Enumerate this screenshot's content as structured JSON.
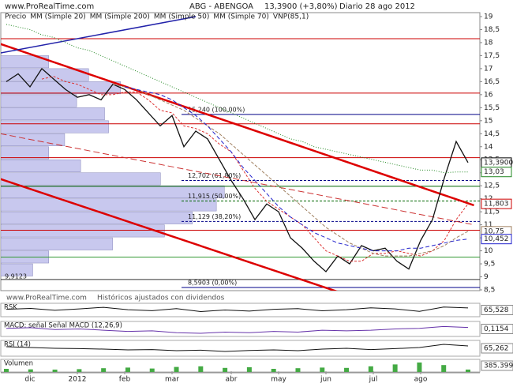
{
  "header": {
    "site": "www.ProRealTime.com",
    "symbol": "ABG - ABENGOA",
    "quote": "13,3900 (+3,80%)",
    "period": "Diario  28 ago 2012"
  },
  "footer": {
    "site": "www.ProRealTime.com",
    "note": "Históricos ajustados con dividendos"
  },
  "chart_data": [
    {
      "type": "line",
      "categories": [
        null,
        null,
        "dic",
        null,
        null,
        null,
        "2012",
        null,
        null,
        null,
        "feb",
        null,
        null,
        null,
        "mar",
        null,
        null,
        null,
        null,
        "abr",
        null,
        null,
        null,
        "may",
        null,
        null,
        null,
        "jun",
        null,
        null,
        null,
        "jul",
        null,
        null,
        null,
        "ago",
        null,
        null,
        null,
        null
      ],
      "series": [
        {
          "name": "Precio",
          "color": "#111111",
          "values": [
            16.5,
            16.8,
            16.3,
            17.0,
            16.6,
            16.2,
            15.9,
            16.0,
            15.8,
            16.4,
            16.2,
            15.8,
            15.3,
            14.8,
            15.2,
            14.0,
            14.6,
            14.3,
            13.5,
            12.7,
            12.0,
            11.2,
            11.8,
            11.5,
            10.5,
            10.1,
            9.6,
            9.2,
            9.8,
            9.5,
            10.2,
            10.0,
            10.1,
            9.6,
            9.3,
            10.4,
            11.2,
            12.8,
            14.2,
            13.39
          ]
        },
        {
          "name": "MM (Simple 20)",
          "color": "#dd3333",
          "values": [
            null,
            null,
            null,
            16.6,
            16.7,
            16.5,
            16.4,
            16.2,
            16.0,
            16.0,
            16.1,
            16.1,
            15.8,
            15.4,
            15.3,
            14.8,
            14.7,
            14.5,
            14.1,
            13.8,
            13.1,
            12.4,
            11.9,
            11.6,
            11.3,
            11.0,
            10.5,
            10.0,
            9.8,
            9.6,
            9.6,
            9.9,
            9.9,
            10.0,
            9.9,
            9.8,
            10.0,
            10.4,
            11.2,
            11.8
          ]
        },
        {
          "name": "MM (Simple 200)",
          "color": "#228822",
          "values": [
            18.7,
            18.6,
            18.5,
            18.3,
            18.2,
            18.0,
            17.8,
            17.7,
            17.5,
            17.3,
            17.1,
            16.9,
            16.7,
            16.5,
            16.3,
            16.1,
            15.9,
            15.7,
            15.5,
            15.3,
            15.1,
            14.9,
            14.7,
            14.5,
            14.3,
            14.2,
            14.0,
            13.9,
            13.8,
            13.7,
            13.6,
            13.5,
            13.4,
            13.3,
            13.2,
            13.1,
            13.1,
            13.0,
            13.03,
            13.03
          ]
        },
        {
          "name": "MM (Simple 50)",
          "color": "#a08060",
          "values": [
            null,
            null,
            null,
            null,
            null,
            null,
            null,
            null,
            null,
            16.4,
            16.3,
            16.2,
            16.0,
            15.8,
            15.6,
            15.4,
            15.1,
            14.8,
            14.5,
            14.1,
            13.7,
            13.3,
            12.9,
            12.5,
            12.1,
            11.7,
            11.3,
            10.9,
            10.6,
            10.3,
            10.1,
            9.9,
            9.8,
            9.8,
            9.8,
            9.9,
            10.0,
            10.2,
            10.5,
            10.75
          ]
        },
        {
          "name": "MM (Simple 70)",
          "color": "#2222cc",
          "values": [
            null,
            null,
            null,
            null,
            null,
            null,
            null,
            null,
            null,
            null,
            16.3,
            16.2,
            16.1,
            16.0,
            15.8,
            15.5,
            15.2,
            14.8,
            14.3,
            13.8,
            13.2,
            12.7,
            12.2,
            11.7,
            11.3,
            11.0,
            10.7,
            10.5,
            10.3,
            10.2,
            10.1,
            10.0,
            10.0,
            10.0,
            10.1,
            10.1,
            10.2,
            10.3,
            10.4,
            10.452
          ]
        }
      ],
      "profile": {
        "name": "VNP(85,1)",
        "color": "#c8c8ee",
        "bins": [
          9,
          9.5,
          10,
          10.5,
          11,
          11.5,
          12,
          12.5,
          13,
          13.5,
          14,
          14.5,
          15,
          15.5,
          16,
          16.5,
          17,
          17.5
        ],
        "values": [
          40,
          60,
          140,
          205,
          240,
          270,
          280,
          200,
          100,
          60,
          80,
          135,
          130,
          95,
          150,
          110,
          60
        ],
        "xlim": [
          0,
          600
        ],
        "low_label": "9,9123"
      },
      "ylim": [
        8.5,
        19
      ],
      "yticks": [
        {
          "value": 8.5,
          "label": "8,5"
        },
        9,
        {
          "value": 9.5,
          "label": "9,5"
        },
        10,
        {
          "value": 10.5,
          "label": "10,5"
        },
        11,
        {
          "value": 11.5,
          "label": "11,5"
        },
        12,
        {
          "value": 12.5,
          "label": "12,5"
        },
        13,
        {
          "value": 13.5,
          "label": "13,5"
        },
        14,
        {
          "value": 14.5,
          "label": "14,5"
        },
        15,
        {
          "value": 15.5,
          "label": "15,5"
        },
        16,
        {
          "value": 16.5,
          "label": "16,5"
        },
        17,
        {
          "value": 17.5,
          "label": "17,5"
        },
        18,
        {
          "value": 18.5,
          "label": "18,5"
        },
        19
      ],
      "lines": [
        {
          "value": 18.15,
          "color": "#cc0000"
        },
        {
          "value": 16.06,
          "color": "#cc0000"
        },
        {
          "value": 14.88,
          "color": "#cc0000"
        },
        {
          "value": 13.58,
          "color": "#cc0000"
        },
        {
          "value": 12.48,
          "color": "#006600"
        },
        {
          "value": 10.79,
          "color": "#cc0000"
        },
        {
          "value": 9.76,
          "color": "#339933"
        },
        {
          "value": 8.9,
          "color": "#333333"
        }
      ],
      "fib_levels": [
        {
          "value": 15.24,
          "label": "15,240 (100,00%)",
          "color": "#000088"
        },
        {
          "value": 12.702,
          "label": "12,702 (61,80%)",
          "color": "#000088"
        },
        {
          "value": 11.915,
          "label": "11,915 (50,00%)",
          "color": "#006600"
        },
        {
          "value": 11.129,
          "label": "11,129 (38,20%)",
          "color": "#000088"
        },
        {
          "value": 8.5903,
          "label": "8,5903 (0,00%)",
          "color": "#000088"
        }
      ],
      "trendlines": [
        {
          "color": "#dd0000",
          "points": [
            -0.5,
            17.95,
            39.5,
            11.75
          ]
        },
        {
          "color": "#dd0000",
          "points": [
            -0.5,
            12.76,
            29.5,
            8.2
          ]
        },
        {
          "color": "#2222aa",
          "points": [
            -0.5,
            17.6,
            16,
            19
          ]
        },
        {
          "color": "#cc3333",
          "points": [
            -0.5,
            14.5,
            39.5,
            11.0
          ]
        }
      ],
      "price_labels": [
        {
          "value": 13.39,
          "label": "13,3900",
          "color": "#000000"
        },
        {
          "value": 13.03,
          "label": "13,03",
          "color": "#228822"
        },
        {
          "value": 11.803,
          "label": "11,803",
          "color": "#cc0000"
        },
        {
          "value": 10.75,
          "label": "10,75",
          "color": "#a08060"
        },
        {
          "value": 10.452,
          "label": "10,452",
          "color": "#2222cc"
        }
      ]
    },
    {
      "type": "line",
      "title": "RSK",
      "color": "#111111",
      "ylim": [
        0,
        100
      ],
      "values": [
        55,
        62,
        48,
        58,
        70,
        52,
        45,
        60,
        38,
        50,
        42,
        55,
        60,
        44,
        52,
        66,
        58,
        40,
        72,
        65.528
      ],
      "last_label": "65,528"
    },
    {
      "type": "line",
      "title": "MACD: señal  Señal  MACD (12,26,9)",
      "color": "#6633aa",
      "ylim": [
        -0.6,
        0.6
      ],
      "values": [
        0.05,
        0.1,
        -0.05,
        0.0,
        -0.1,
        -0.2,
        -0.15,
        -0.3,
        -0.35,
        -0.25,
        -0.3,
        -0.2,
        -0.25,
        -0.1,
        -0.15,
        -0.1,
        0.0,
        0.05,
        0.2,
        0.1154
      ],
      "last_label": "0,1154"
    },
    {
      "type": "line",
      "title": "RSI (14)",
      "color": "#111111",
      "ylim": [
        0,
        100
      ],
      "values": [
        60,
        55,
        50,
        48,
        45,
        40,
        42,
        35,
        38,
        30,
        36,
        40,
        35,
        45,
        50,
        42,
        48,
        55,
        75,
        65.262
      ],
      "last_label": "65,262"
    },
    {
      "type": "bar",
      "title": "Volumen",
      "color": "#44aa44",
      "ylim": [
        0,
        2000000
      ],
      "values": [
        500000,
        420000,
        380000,
        450000,
        600000,
        700000,
        550000,
        800000,
        900000,
        650000,
        750000,
        500000,
        600000,
        700000,
        650000,
        900000,
        1200000,
        1500000,
        1100000,
        385399
      ],
      "last_label": "385.399"
    }
  ]
}
